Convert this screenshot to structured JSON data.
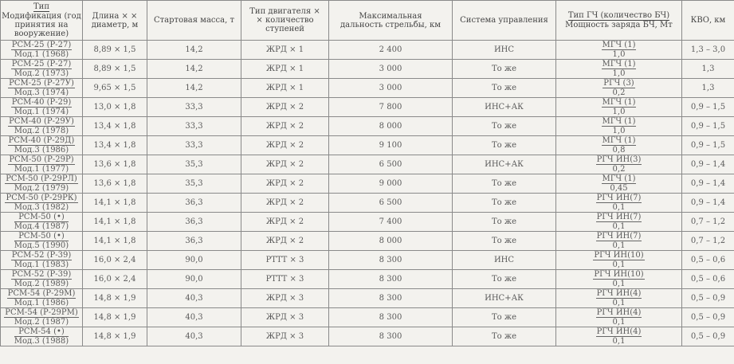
{
  "headers": {
    "type_top": "Тип",
    "type_bottom": "Модификация (год принятия на вооружение)",
    "dims": "Длина × × диаметр, м",
    "mass": "Стартовая масса, т",
    "engine": "Тип двигателя × × количество ступеней",
    "range": "Максимальная дальность стрельбы, км",
    "guidance": "Система управления",
    "warhead_top": "Тип ГЧ (количество БЧ)",
    "warhead_bottom": "Мощность заряда БЧ, Мт",
    "cep": "КВО, км"
  },
  "rows": [
    {
      "type": "РСМ-25 (Р-27)",
      "mod": "Мод.1 (1968)",
      "dims": "8,89 × 1,5",
      "mass": "14,2",
      "engine": "ЖРД × 1",
      "range": "2 400",
      "guidance": "ИНС",
      "wh": "МГЧ (1)",
      "yield": "1,0",
      "cep": "1,3 – 3,0"
    },
    {
      "type": "РСМ-25 (Р-27)",
      "mod": "Мод.2 (1973)",
      "dims": "8,89 × 1,5",
      "mass": "14,2",
      "engine": "ЖРД × 1",
      "range": "3 000",
      "guidance": "То же",
      "wh": "МГЧ (1)",
      "yield": "1,0",
      "cep": "1,3"
    },
    {
      "type": "РСМ-25 (Р-27У)",
      "mod": "Мод.3 (1974)",
      "dims": "9,65 × 1,5",
      "mass": "14,2",
      "engine": "ЖРД × 1",
      "range": "3 000",
      "guidance": "То же",
      "wh": "РГЧ (3)",
      "yield": "0,2",
      "cep": "1,3"
    },
    {
      "type": "РСМ-40 (Р-29)",
      "mod": "Мод.1 (1974)",
      "dims": "13,0 × 1,8",
      "mass": "33,3",
      "engine": "ЖРД × 2",
      "range": "7 800",
      "guidance": "ИНС+АК",
      "wh": "МГЧ (1)",
      "yield": "1,0",
      "cep": "0,9 – 1,5"
    },
    {
      "type": "РСМ-40 (Р-29У)",
      "mod": "Мод.2 (1978)",
      "dims": "13,4 × 1,8",
      "mass": "33,3",
      "engine": "ЖРД × 2",
      "range": "8 000",
      "guidance": "То же",
      "wh": "МГЧ (1)",
      "yield": "1,0",
      "cep": "0,9 – 1,5"
    },
    {
      "type": "РСМ-40 (Р-29Д)",
      "mod": "Мод.3 (1986)",
      "dims": "13,4 × 1,8",
      "mass": "33,3",
      "engine": "ЖРД × 2",
      "range": "9 100",
      "guidance": "То же",
      "wh": "МГЧ (1)",
      "yield": "0,8",
      "cep": "0,9 – 1,5"
    },
    {
      "type": "РСМ-50 (Р-29Р)",
      "mod": "Мод.1 (1977)",
      "dims": "13,6 × 1,8",
      "mass": "35,3",
      "engine": "ЖРД × 2",
      "range": "6 500",
      "guidance": "ИНС+АК",
      "wh": "РГЧ ИН(3)",
      "yield": "0,2",
      "cep": "0,9 – 1,4"
    },
    {
      "type": "РСМ-50 (Р-29РЛ)",
      "mod": "Мод.2 (1979)",
      "dims": "13,6 × 1,8",
      "mass": "35,3",
      "engine": "ЖРД × 2",
      "range": "9 000",
      "guidance": "То же",
      "wh": "МГЧ (1)",
      "yield": "0,45",
      "cep": "0,9 – 1,4"
    },
    {
      "type": "РСМ-50 (Р-29РК)",
      "mod": "Мод.3 (1982)",
      "dims": "14,1 × 1,8",
      "mass": "36,3",
      "engine": "ЖРД × 2",
      "range": "6 500",
      "guidance": "То же",
      "wh": "РГЧ ИН(7)",
      "yield": "0,1",
      "cep": "0,9 – 1,4"
    },
    {
      "type": "РСМ-50 (•)",
      "mod": "Мод.4 (1987)",
      "dims": "14,1 × 1,8",
      "mass": "36,3",
      "engine": "ЖРД × 2",
      "range": "7 400",
      "guidance": "То же",
      "wh": "РГЧ ИН(7)",
      "yield": "0,1",
      "cep": "0,7 – 1,2"
    },
    {
      "type": "РСМ-50 (•)",
      "mod": "Мод.5 (1990)",
      "dims": "14,1 × 1,8",
      "mass": "36,3",
      "engine": "ЖРД × 2",
      "range": "8 000",
      "guidance": "То же",
      "wh": "РГЧ ИН(7)",
      "yield": "0,1",
      "cep": "0,7 – 1,2"
    },
    {
      "type": "РСМ-52 (Р-39)",
      "mod": "Мод.1 (1983)",
      "dims": "16,0 × 2,4",
      "mass": "90,0",
      "engine": "РТТТ × 3",
      "range": "8 300",
      "guidance": "ИНС",
      "wh": "РГЧ ИН(10)",
      "yield": "0,1",
      "cep": "0,5 – 0,6"
    },
    {
      "type": "РСМ-52 (Р-39)",
      "mod": "Мод.2 (1989)",
      "dims": "16,0 × 2,4",
      "mass": "90,0",
      "engine": "РТТТ × 3",
      "range": "8 300",
      "guidance": "То же",
      "wh": "РГЧ ИН(10)",
      "yield": "0,1",
      "cep": "0,5 – 0,6"
    },
    {
      "type": "РСМ-54 (Р-29М)",
      "mod": "Мод.1 (1986)",
      "dims": "14,8 × 1,9",
      "mass": "40,3",
      "engine": "ЖРД × 3",
      "range": "8 300",
      "guidance": "ИНС+АК",
      "wh": "РГЧ ИН(4)",
      "yield": "0,1",
      "cep": "0,5 – 0,9"
    },
    {
      "type": "РСМ-54 (Р-29РМ)",
      "mod": "Мод.2 (1987)",
      "dims": "14,8 × 1,9",
      "mass": "40,3",
      "engine": "ЖРД × 3",
      "range": "8 300",
      "guidance": "То же",
      "wh": "РГЧ ИН(4)",
      "yield": "0,1",
      "cep": "0,5 – 0,9"
    },
    {
      "type": "РСМ-54 (•)",
      "mod": "Мод.3 (1988)",
      "dims": "14,8 × 1,9",
      "mass": "40,3",
      "engine": "ЖРД × 3",
      "range": "8 300",
      "guidance": "То же",
      "wh": "РГЧ ИН(4)",
      "yield": "0,1",
      "cep": "0,5 – 0,9"
    }
  ]
}
